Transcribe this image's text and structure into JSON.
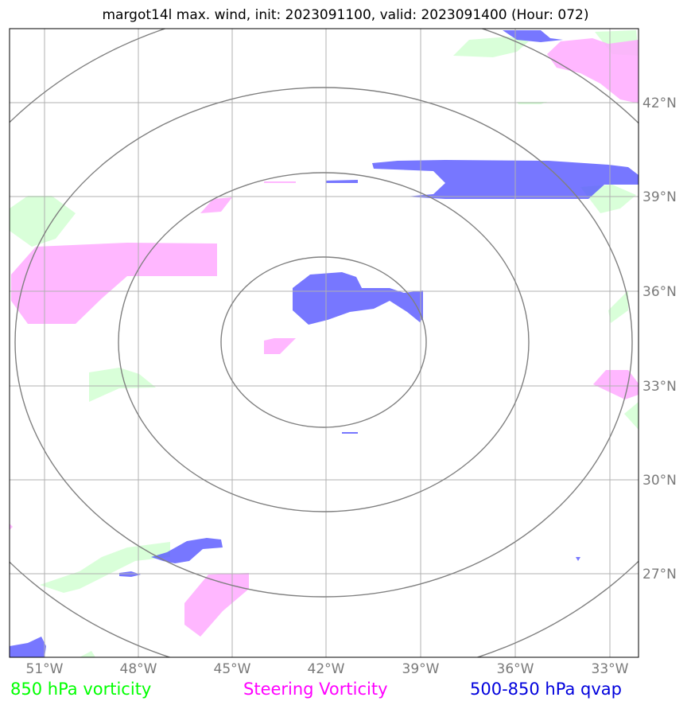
{
  "title": "margot14l max. wind, init: 2023091100, valid: 2023091400 (Hour: 072)",
  "map": {
    "lon_range": [
      -52.5,
      -32.5
    ],
    "lat_range": [
      23.8,
      43.8
    ],
    "lon_ticks": [
      "51°W",
      "48°W",
      "45°W",
      "42°W",
      "39°W",
      "36°W",
      "33°W"
    ],
    "lat_ticks": [
      "42°N",
      "39°N",
      "36°N",
      "33°N",
      "30°N",
      "27°N"
    ],
    "range_rings_center": {
      "lon": -42.0,
      "lat": 34.5
    },
    "range_ring_count": 4
  },
  "legend": {
    "vorticity_850": {
      "label": "850 hPa vorticity",
      "color": "#00ff00"
    },
    "steering_vorticity": {
      "label": "Steering Vorticity",
      "color": "#ff00ff"
    },
    "qvap": {
      "label": "500-850 hPa qvap",
      "color": "#0000dd"
    }
  },
  "colors": {
    "green_fill": "#ccffcc",
    "magenta_fill": "#ffaaff",
    "blue_fill": "#6666ff",
    "ring": "#808080",
    "grid": "#b0b0b0"
  }
}
